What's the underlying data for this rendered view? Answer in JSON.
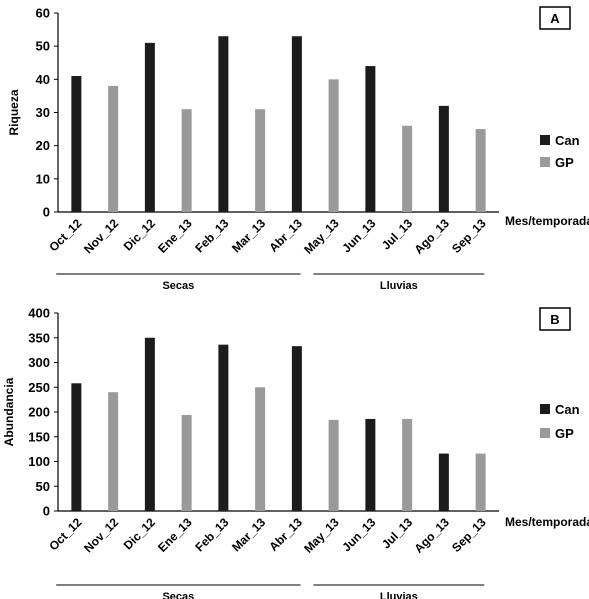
{
  "colors": {
    "Can": "#1c1c1c",
    "GP": "#9a9a9a"
  },
  "chart_data": [
    {
      "type": "bar",
      "panel_label": "A",
      "categories": [
        "Oct_12",
        "Nov_12",
        "Dic_12",
        "Ene_13",
        "Feb_13",
        "Mar_13",
        "Abr_13",
        "May_13",
        "Jun_13",
        "Jul_13",
        "Ago_13",
        "Sep_13"
      ],
      "series": [
        {
          "name": "Can",
          "values": [
            41,
            null,
            51,
            null,
            53,
            null,
            53,
            null,
            44,
            null,
            32,
            null
          ]
        },
        {
          "name": "GP",
          "values": [
            null,
            38,
            null,
            31,
            null,
            31,
            null,
            40,
            null,
            26,
            null,
            25
          ]
        }
      ],
      "ylabel": "Riqueza",
      "xlabel": "Mes/temporada",
      "ylim": [
        0,
        60
      ],
      "yticks": [
        0,
        10,
        20,
        30,
        40,
        50,
        60
      ],
      "seasons": [
        {
          "label": "Secas",
          "from": "Oct_12",
          "to": "Abr_13"
        },
        {
          "label": "Lluvias",
          "from": "May_13",
          "to": "Sep_13"
        }
      ],
      "legend": "right",
      "grid": false
    },
    {
      "type": "bar",
      "panel_label": "B",
      "categories": [
        "Oct_12",
        "Nov_12",
        "Dic_12",
        "Ene_13",
        "Feb_13",
        "Mar_13",
        "Abr_13",
        "May_13",
        "Jun_13",
        "Jul_13",
        "Ago_13",
        "Sep_13"
      ],
      "series": [
        {
          "name": "Can",
          "values": [
            258,
            null,
            350,
            null,
            336,
            null,
            333,
            null,
            186,
            null,
            116,
            null
          ]
        },
        {
          "name": "GP",
          "values": [
            null,
            240,
            null,
            194,
            null,
            250,
            null,
            184,
            null,
            186,
            null,
            116
          ]
        }
      ],
      "ylabel": "Abundancia",
      "xlabel": "Mes/temporada",
      "ylim": [
        0,
        400
      ],
      "yticks": [
        0,
        50,
        100,
        150,
        200,
        250,
        300,
        350,
        400
      ],
      "seasons": [
        {
          "label": "Secas",
          "from": "Oct_12",
          "to": "Abr_13"
        },
        {
          "label": "Lluvias",
          "from": "May_13",
          "to": "Sep_13"
        }
      ],
      "legend": "right",
      "grid": false
    }
  ]
}
